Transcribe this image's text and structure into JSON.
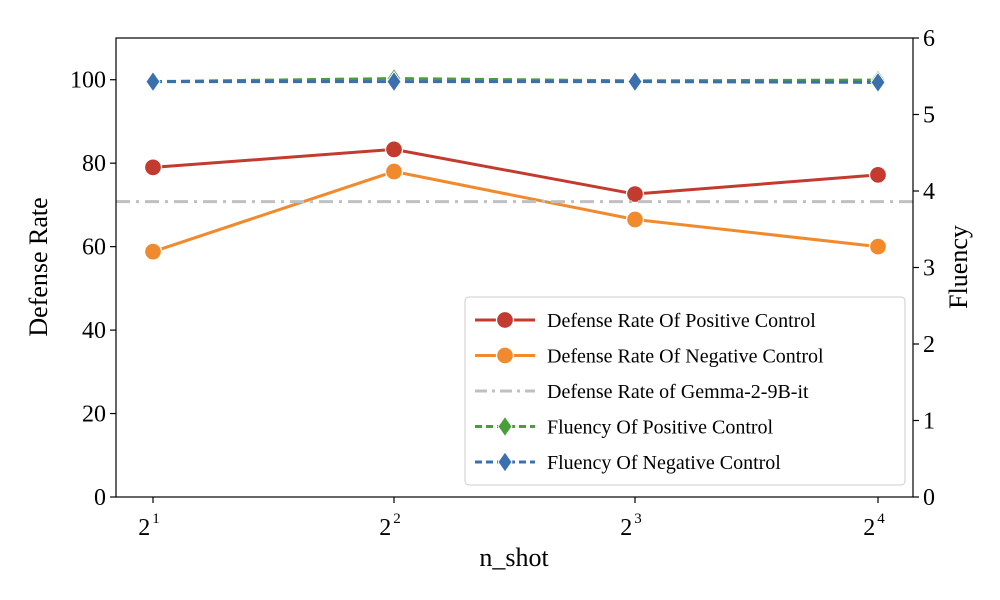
{
  "chart_data": {
    "type": "line",
    "title": "",
    "xlabel": "n_shot",
    "ylabel": "Defense Rate",
    "y2label": "Fluency",
    "x_ticks": [
      {
        "base": "2",
        "exp": "1"
      },
      {
        "base": "2",
        "exp": "2"
      },
      {
        "base": "2",
        "exp": "3"
      },
      {
        "base": "2",
        "exp": "4"
      }
    ],
    "x": [
      2,
      4,
      8,
      16
    ],
    "x_scale": "log2",
    "ylim": [
      0,
      110
    ],
    "y_ticks": [
      "0",
      "20",
      "40",
      "60",
      "80",
      "100"
    ],
    "y2lim": [
      0,
      6
    ],
    "y2_ticks": [
      "0",
      "1",
      "2",
      "3",
      "4",
      "5",
      "6"
    ],
    "legend_position": "lower-right",
    "grid": false,
    "series": [
      {
        "name": "Defense Rate Of Positive Control",
        "axis": "left",
        "color": "#c23b2e",
        "marker": "circle",
        "linestyle": "solid",
        "values": [
          79.0,
          83.3,
          72.6,
          77.2
        ]
      },
      {
        "name": "Defense Rate Of Negative Control",
        "axis": "left",
        "color": "#f08a2c",
        "marker": "circle",
        "linestyle": "solid",
        "values": [
          58.8,
          78.0,
          66.5,
          60.0
        ]
      },
      {
        "name": "Defense Rate of Gemma-2-9B-it",
        "axis": "left",
        "color": "#c0c0c0",
        "marker": "none",
        "linestyle": "dashdot",
        "values": [
          70.8,
          70.8,
          70.8,
          70.8
        ]
      },
      {
        "name": "Fluency Of Positive Control",
        "axis": "right",
        "color": "#4a9e3a",
        "marker": "diamond",
        "linestyle": "dashed",
        "values": [
          5.43,
          5.47,
          5.44,
          5.45
        ]
      },
      {
        "name": "Fluency Of Negative Control",
        "axis": "right",
        "color": "#3a6fb0",
        "marker": "diamond",
        "linestyle": "dashed",
        "values": [
          5.43,
          5.43,
          5.43,
          5.42
        ]
      }
    ]
  }
}
